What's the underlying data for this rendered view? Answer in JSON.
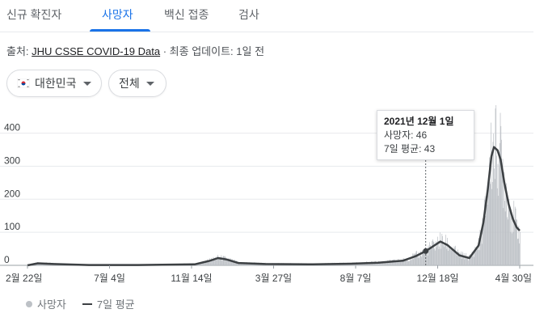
{
  "tabs": [
    {
      "label": "신규 확진자",
      "active": false
    },
    {
      "label": "사망자",
      "active": true
    },
    {
      "label": "백신 접종",
      "active": false
    },
    {
      "label": "검사",
      "active": false
    }
  ],
  "source": {
    "prefix": "출처:",
    "link": "JHU CSSE COVID-19 Data",
    "suffix": "· 최종 업데이트: 1일 전"
  },
  "filters": {
    "region": "대한민국",
    "period": "전체"
  },
  "tooltip": {
    "date": "2021년 12월 1일",
    "deaths": "사망자: 46",
    "avg": "7일 평균: 43"
  },
  "legend": {
    "bars": "사망자",
    "line": "7일 평균"
  },
  "colors": {
    "accent": "#1a73e8",
    "bars": "#bdc1c6",
    "line": "#3c4043"
  },
  "chart_data": {
    "type": "bar",
    "xlabel": "",
    "ylabel": "",
    "ylim": [
      0,
      470
    ],
    "yticks": [
      0,
      100,
      200,
      300,
      400
    ],
    "xtick_labels": [
      "2월 22일",
      "7월 4일",
      "11월 14일",
      "3월 27일",
      "8월 7일",
      "12월 18일",
      "4월 30일"
    ],
    "date_range": [
      "2020-02-22",
      "2022-05-03"
    ],
    "highlight": {
      "date": "2021-12-01",
      "deaths": 46,
      "avg": 43
    },
    "series": [
      {
        "name": "사망자",
        "kind": "bar"
      },
      {
        "name": "7일 평균",
        "kind": "line",
        "points": [
          [
            "2020-02-22",
            0
          ],
          [
            "2020-03-10",
            6
          ],
          [
            "2020-04-05",
            4
          ],
          [
            "2020-06-01",
            1
          ],
          [
            "2020-08-20",
            1
          ],
          [
            "2020-11-20",
            3
          ],
          [
            "2020-12-15",
            14
          ],
          [
            "2020-12-28",
            22
          ],
          [
            "2021-01-10",
            18
          ],
          [
            "2021-01-30",
            7
          ],
          [
            "2021-03-15",
            4
          ],
          [
            "2021-06-01",
            3
          ],
          [
            "2021-08-01",
            5
          ],
          [
            "2021-09-15",
            8
          ],
          [
            "2021-10-25",
            14
          ],
          [
            "2021-11-15",
            28
          ],
          [
            "2021-12-01",
            43
          ],
          [
            "2021-12-15",
            60
          ],
          [
            "2021-12-25",
            72
          ],
          [
            "2022-01-05",
            62
          ],
          [
            "2022-01-25",
            30
          ],
          [
            "2022-02-10",
            22
          ],
          [
            "2022-02-25",
            60
          ],
          [
            "2022-03-05",
            130
          ],
          [
            "2022-03-12",
            230
          ],
          [
            "2022-03-18",
            330
          ],
          [
            "2022-03-22",
            358
          ],
          [
            "2022-03-28",
            348
          ],
          [
            "2022-04-02",
            320
          ],
          [
            "2022-04-08",
            250
          ],
          [
            "2022-04-15",
            185
          ],
          [
            "2022-04-22",
            140
          ],
          [
            "2022-04-28",
            115
          ],
          [
            "2022-05-03",
            105
          ]
        ]
      }
    ]
  }
}
